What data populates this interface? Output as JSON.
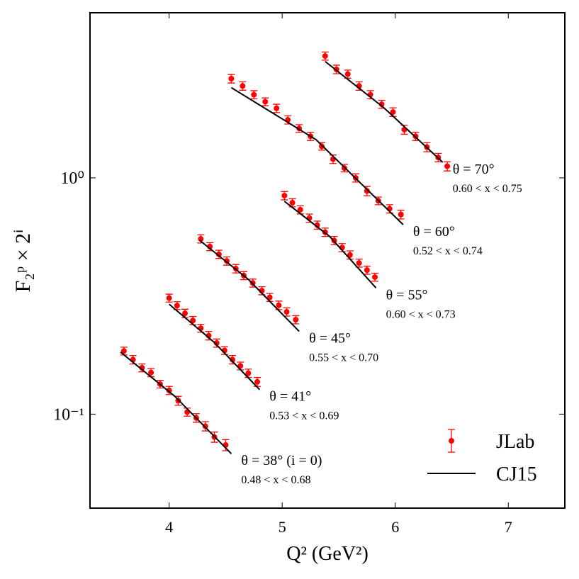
{
  "chart_data": {
    "type": "scatter",
    "x_label": "Q² (GeV²)",
    "y_label": "F₂ᵖ × 2ⁱ",
    "xlim": [
      3.3,
      7.5
    ],
    "xticks": [
      4,
      5,
      6,
      7
    ],
    "ylim": [
      0.04,
      5
    ],
    "y_scale": "log",
    "yticks": [
      {
        "value": 0.1,
        "label": "10⁻¹"
      },
      {
        "value": 1,
        "label": "10⁰"
      }
    ],
    "legend_position": "lower right",
    "series": [
      {
        "name": "JLab",
        "color": "#ff0000",
        "groups": [
          {
            "x": [
              3.6,
              3.68,
              3.76,
              3.84,
              3.92,
              4.0,
              4.08,
              4.16,
              4.24,
              4.32,
              4.4,
              4.5
            ],
            "values": [
              0.185,
              0.17,
              0.157,
              0.15,
              0.134,
              0.126,
              0.114,
              0.102,
              0.0964,
              0.0889,
              0.08,
              0.074
            ],
            "errors": [
              0.007,
              0.007,
              0.006,
              0.006,
              0.005,
              0.005,
              0.005,
              0.004,
              0.004,
              0.004,
              0.004,
              0.004
            ]
          },
          {
            "x": [
              4.0,
              4.07,
              4.14,
              4.21,
              4.28,
              4.35,
              4.42,
              4.49,
              4.56,
              4.63,
              4.7,
              4.78
            ],
            "values": [
              0.31,
              0.288,
              0.267,
              0.249,
              0.231,
              0.215,
              0.2,
              0.186,
              0.17,
              0.16,
              0.149,
              0.137
            ],
            "errors": [
              0.012,
              0.011,
              0.011,
              0.01,
              0.009,
              0.009,
              0.008,
              0.007,
              0.007,
              0.006,
              0.006,
              0.006
            ]
          },
          {
            "x": [
              4.28,
              4.36,
              4.44,
              4.51,
              4.59,
              4.66,
              4.74,
              4.82,
              4.89,
              4.97,
              5.04,
              5.12
            ],
            "values": [
              0.552,
              0.512,
              0.475,
              0.445,
              0.413,
              0.386,
              0.359,
              0.333,
              0.312,
              0.289,
              0.271,
              0.251
            ],
            "errors": [
              0.022,
              0.02,
              0.019,
              0.018,
              0.017,
              0.015,
              0.014,
              0.013,
              0.012,
              0.012,
              0.011,
              0.01
            ]
          },
          {
            "x": [
              5.02,
              5.09,
              5.16,
              5.24,
              5.31,
              5.38,
              5.46,
              5.53,
              5.6,
              5.68,
              5.75,
              5.82
            ],
            "values": [
              0.841,
              0.785,
              0.733,
              0.676,
              0.631,
              0.589,
              0.543,
              0.507,
              0.472,
              0.436,
              0.407,
              0.38
            ],
            "errors": [
              0.034,
              0.031,
              0.029,
              0.027,
              0.025,
              0.024,
              0.022,
              0.02,
              0.019,
              0.017,
              0.016,
              0.015
            ]
          },
          {
            "x": [
              4.55,
              4.65,
              4.75,
              4.85,
              4.95,
              5.05,
              5.15,
              5.25,
              5.35,
              5.45,
              5.55,
              5.65,
              5.75,
              5.85,
              5.95,
              6.05
            ],
            "values": [
              2.63,
              2.45,
              2.25,
              2.1,
              1.97,
              1.76,
              1.62,
              1.5,
              1.36,
              1.2,
              1.1,
              1.0,
              0.88,
              0.8,
              0.74,
              0.7
            ],
            "errors": [
              0.11,
              0.1,
              0.09,
              0.08,
              0.08,
              0.07,
              0.06,
              0.06,
              0.05,
              0.05,
              0.04,
              0.04,
              0.04,
              0.03,
              0.03,
              0.03
            ]
          },
          {
            "x": [
              5.38,
              5.48,
              5.58,
              5.68,
              5.78,
              5.88,
              5.98,
              6.08,
              6.18,
              6.28,
              6.38,
              6.46
            ],
            "values": [
              3.28,
              2.88,
              2.75,
              2.45,
              2.25,
              2.05,
              1.9,
              1.6,
              1.5,
              1.35,
              1.22,
              1.12
            ],
            "errors": [
              0.13,
              0.12,
              0.11,
              0.1,
              0.09,
              0.08,
              0.08,
              0.07,
              0.06,
              0.06,
              0.05,
              0.05
            ]
          }
        ]
      },
      {
        "name": "CJ15",
        "color": "#000000",
        "groups": [
          {
            "x": [
              3.57,
              4.05,
              4.55
            ],
            "values": [
              0.183,
              0.119,
              0.068
            ]
          },
          {
            "x": [
              4.0,
              4.4,
              4.8
            ],
            "values": [
              0.292,
              0.201,
              0.127
            ]
          },
          {
            "x": [
              4.27,
              4.7,
              5.15
            ],
            "values": [
              0.544,
              0.372,
              0.224
            ]
          },
          {
            "x": [
              5.02,
              5.42,
              5.83
            ],
            "values": [
              0.796,
              0.565,
              0.342
            ]
          },
          {
            "x": [
              4.55,
              5.3,
              6.07
            ],
            "values": [
              2.41,
              1.45,
              0.634
            ]
          },
          {
            "x": [
              5.38,
              5.9,
              6.42
            ],
            "values": [
              3.11,
              1.98,
              1.164
            ]
          }
        ]
      }
    ],
    "annotations": [
      {
        "title": "θ = 38° (i = 0)",
        "range": "0.48 < x < 0.68"
      },
      {
        "title": "θ = 41°",
        "range": "0.53 < x < 0.69"
      },
      {
        "title": "θ = 45°",
        "range": "0.55 < x < 0.70"
      },
      {
        "title": "θ = 55°",
        "range": "0.60 < x < 0.73"
      },
      {
        "title": "θ = 60°",
        "range": "0.52 < x < 0.74"
      },
      {
        "title": "θ = 70°",
        "range": "0.60 < x < 0.75"
      }
    ]
  }
}
